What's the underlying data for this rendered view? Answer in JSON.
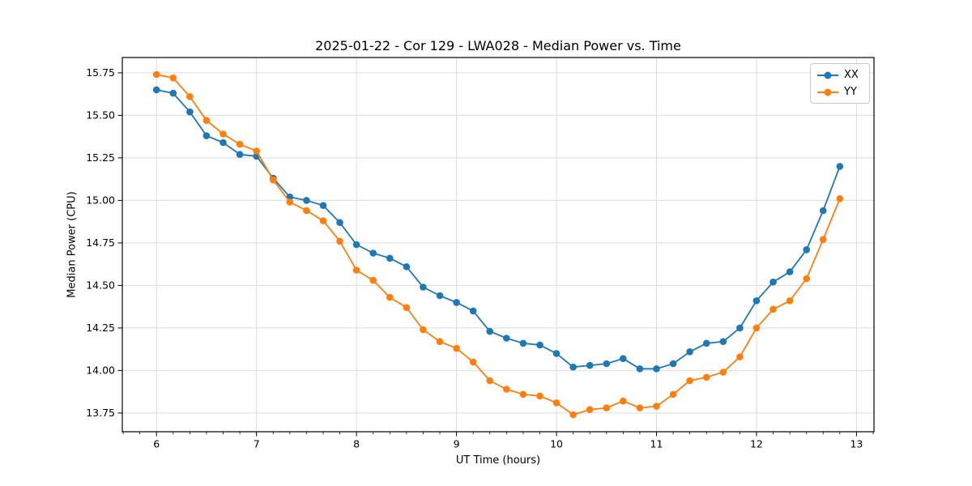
{
  "chart_data": {
    "type": "line",
    "title": "2025-01-22 - Cor 129 - LWA028 - Median Power vs. Time",
    "xlabel": "UT Time (hours)",
    "ylabel": "Median Power (CPU)",
    "x": [
      6.0,
      6.1667,
      6.3333,
      6.5,
      6.6667,
      6.8333,
      7.0,
      7.1667,
      7.3333,
      7.5,
      7.6667,
      7.8333,
      8.0,
      8.1667,
      8.3333,
      8.5,
      8.6667,
      8.8333,
      9.0,
      9.1667,
      9.3333,
      9.5,
      9.6667,
      9.8333,
      10.0,
      10.1667,
      10.3333,
      10.5,
      10.6667,
      10.8333,
      11.0,
      11.1667,
      11.3333,
      11.5,
      11.6667,
      11.8333,
      12.0,
      12.1667,
      12.3333,
      12.5,
      12.6667,
      12.8333
    ],
    "series": [
      {
        "name": "XX",
        "color": "#1f77b4",
        "values": [
          15.65,
          15.63,
          15.52,
          15.38,
          15.34,
          15.27,
          15.26,
          15.13,
          15.02,
          15.0,
          14.97,
          14.87,
          14.74,
          14.69,
          14.66,
          14.61,
          14.49,
          14.44,
          14.4,
          14.35,
          14.23,
          14.19,
          14.16,
          14.15,
          14.1,
          14.02,
          14.03,
          14.04,
          14.07,
          14.01,
          14.01,
          14.04,
          14.11,
          14.16,
          14.17,
          14.25,
          14.41,
          14.52,
          14.58,
          14.71,
          14.94,
          15.2
        ]
      },
      {
        "name": "YY",
        "color": "#ff7f0e",
        "values": [
          15.74,
          15.72,
          15.61,
          15.47,
          15.39,
          15.33,
          15.29,
          15.12,
          14.99,
          14.94,
          14.88,
          14.76,
          14.59,
          14.53,
          14.43,
          14.37,
          14.24,
          14.17,
          14.13,
          14.05,
          13.94,
          13.89,
          13.86,
          13.85,
          13.81,
          13.74,
          13.77,
          13.78,
          13.82,
          13.78,
          13.79,
          13.86,
          13.94,
          13.96,
          13.99,
          14.08,
          14.25,
          14.36,
          14.41,
          14.54,
          14.77,
          15.01
        ]
      }
    ],
    "xlim": [
      5.658,
      13.175
    ],
    "ylim": [
      13.64,
      15.84
    ],
    "x_ticks": [
      6,
      7,
      8,
      9,
      10,
      11,
      12,
      13
    ],
    "x_tick_labels": [
      "6",
      "7",
      "8",
      "9",
      "10",
      "11",
      "12",
      "13"
    ],
    "x_minor_ticks_per_hour": 6,
    "y_ticks": [
      13.75,
      14.0,
      14.25,
      14.5,
      14.75,
      15.0,
      15.25,
      15.5,
      15.75
    ],
    "y_tick_labels": [
      "13.75",
      "14.00",
      "14.25",
      "14.50",
      "14.75",
      "15.00",
      "15.25",
      "15.50",
      "15.75"
    ],
    "grid": true,
    "grid_color": "#dcdcdc",
    "axis_color": "#000000",
    "background": "#ffffff",
    "legend_position": "upper right"
  }
}
